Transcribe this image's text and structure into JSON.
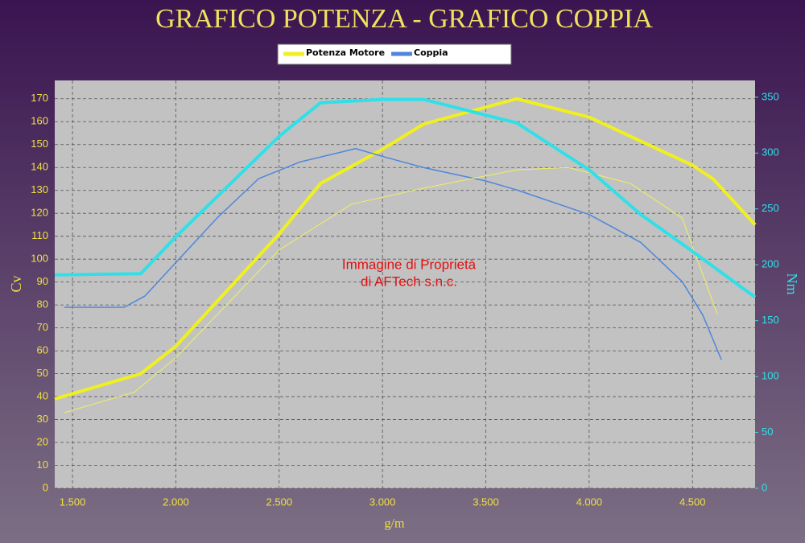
{
  "chart_data": {
    "type": "line",
    "title": "GRAFICO POTENZA - GRAFICO COPPIA",
    "x_label": "g/m",
    "y_label": "Cv",
    "y2_label": "Nm",
    "annotation": [
      "Immagine di Proprietà",
      "di AFTech s.n.c."
    ],
    "xlim": [
      1414,
      4803
    ],
    "xticks": [
      {
        "value": 1500,
        "label": "1.500"
      },
      {
        "value": 2000,
        "label": "2.000"
      },
      {
        "value": 2500,
        "label": "2.500"
      },
      {
        "value": 3000,
        "label": "3.000"
      },
      {
        "value": 3500,
        "label": "3.500"
      },
      {
        "value": 4000,
        "label": "4.000"
      },
      {
        "value": 4500,
        "label": "4.500"
      }
    ],
    "ylim": [
      0,
      178
    ],
    "yticks": [
      0,
      10,
      20,
      30,
      40,
      50,
      60,
      70,
      80,
      90,
      100,
      110,
      120,
      130,
      140,
      150,
      160,
      170
    ],
    "y2lim": [
      0,
      365
    ],
    "y2ticks": [
      0,
      50,
      100,
      150,
      200,
      250,
      300,
      350
    ],
    "grid": true,
    "series": [
      {
        "name": "Potenza Motore",
        "color": "#f0f020",
        "width": 4,
        "x": [
          1414,
          1830,
          2000,
          2500,
          2700,
          3000,
          3200,
          3650,
          4000,
          4500,
          4600,
          4803
        ],
        "values": [
          39,
          50,
          62,
          111,
          133,
          148,
          159,
          170,
          162,
          141,
          135,
          115
        ]
      },
      {
        "name": "Coppia",
        "color": "#4f86dc",
        "width": 1.5,
        "axis": "y2",
        "x": [
          1460,
          1750,
          1850,
          2000,
          2200,
          2400,
          2600,
          2870,
          3000,
          3200,
          3500,
          3650,
          4000,
          4250,
          4450,
          4550,
          4640
        ],
        "values": [
          162,
          162,
          172,
          202,
          242,
          277,
          292,
          304,
          297,
          287,
          275,
          267,
          245,
          220,
          185,
          155,
          115
        ]
      },
      {
        "color": "#f2f060",
        "width": 1,
        "x": [
          1460,
          1800,
          2000,
          2500,
          2850,
          3200,
          3650,
          3900,
          4200,
          4450,
          4620
        ],
        "values": [
          33,
          42,
          57,
          104,
          124,
          131,
          139,
          140,
          133,
          118,
          76
        ]
      },
      {
        "color": "#30e0e8",
        "width": 4,
        "axis": "y2",
        "x": [
          1414,
          1830,
          2000,
          2500,
          2700,
          3000,
          3200,
          3650,
          4000,
          4250,
          4500,
          4803
        ],
        "values": [
          191,
          192,
          225,
          315,
          345,
          348,
          348,
          327,
          285,
          245,
          212,
          171
        ]
      }
    ]
  }
}
